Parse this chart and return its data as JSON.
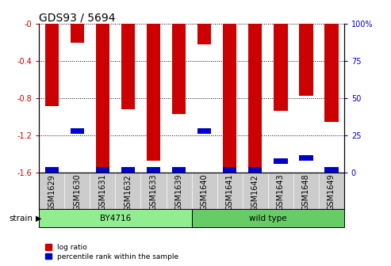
{
  "title": "GDS93 / 5694",
  "samples": [
    "GSM1629",
    "GSM1630",
    "GSM1631",
    "GSM1632",
    "GSM1633",
    "GSM1639",
    "GSM1640",
    "GSM1641",
    "GSM1642",
    "GSM1643",
    "GSM1648",
    "GSM1649"
  ],
  "log_ratios": [
    -0.88,
    -0.2,
    -1.6,
    -0.92,
    -1.47,
    -0.97,
    -0.22,
    -1.6,
    -1.6,
    -0.93,
    -0.77,
    -1.05
  ],
  "percentile_ranks": [
    2,
    28,
    0,
    2,
    2,
    2,
    28,
    0,
    0,
    8,
    10,
    2
  ],
  "strain_groups": [
    {
      "label": "BY4716",
      "start": 0,
      "end": 6,
      "color": "#90EE90"
    },
    {
      "label": "wild type",
      "start": 6,
      "end": 12,
      "color": "#66CC66"
    }
  ],
  "bar_color": "#CC0000",
  "percentile_color": "#0000CC",
  "bg_color": "#ffffff",
  "ylim_left": [
    -1.6,
    0.0
  ],
  "ylim_right": [
    0,
    100
  ],
  "yticks_left": [
    0,
    -0.4,
    -0.8,
    -1.2,
    -1.6
  ],
  "yticks_right": [
    0,
    25,
    50,
    75,
    100
  ],
  "grid_color": "#000000",
  "tick_color_left": "#CC0000",
  "tick_color_right": "#0000CC",
  "title_fontsize": 10,
  "tick_fontsize": 7,
  "bar_width": 0.55,
  "strain_label": "strain"
}
